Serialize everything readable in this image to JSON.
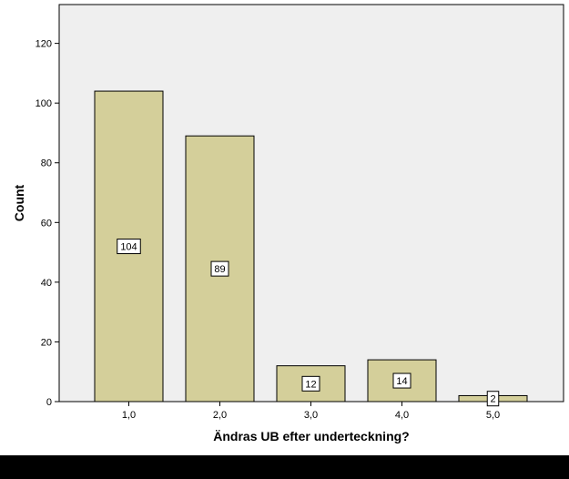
{
  "chart_data": {
    "type": "bar",
    "categories": [
      "1,0",
      "2,0",
      "3,0",
      "4,0",
      "5,0"
    ],
    "values": [
      104,
      89,
      12,
      14,
      2
    ],
    "data_labels": [
      "104",
      "89",
      "12",
      "14",
      "2"
    ],
    "title": "",
    "xlabel": "Ändras UB efter underteckning?",
    "ylabel": "Count",
    "ylim": [
      0,
      133
    ],
    "yticks": [
      0,
      20,
      40,
      60,
      80,
      100,
      120
    ],
    "grid": false,
    "legend": "none",
    "colors": {
      "bar_fill": "#d4cf9a",
      "bar_stroke": "#000000",
      "plot_background": "#efefef",
      "page_background": "#ffffff",
      "axis": "#000000"
    }
  }
}
